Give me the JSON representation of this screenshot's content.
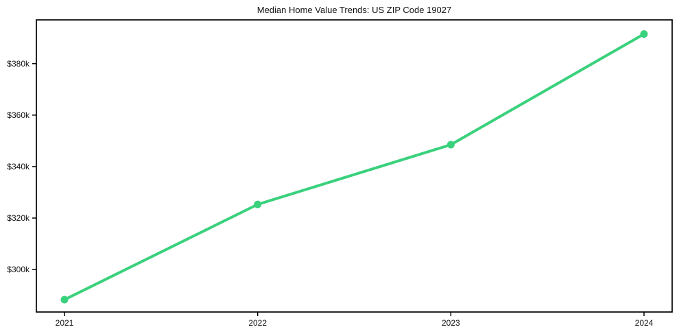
{
  "colors": {
    "line": "#3ad17d",
    "axis": "#000000",
    "text": "#111111",
    "background": "#ffffff"
  },
  "chart_data": {
    "type": "line",
    "title": "Median Home Value Trends: US ZIP Code 19027",
    "xlabel": "",
    "ylabel": "",
    "categories": [
      "2021",
      "2022",
      "2023",
      "2024"
    ],
    "values": [
      288300,
      325300,
      348500,
      391500
    ],
    "ytick_values": [
      300000,
      320000,
      340000,
      360000,
      380000
    ],
    "ytick_labels": [
      "$300k",
      "$320k",
      "$340k",
      "$360k",
      "$380k"
    ],
    "ylim": [
      283500,
      397000
    ],
    "grid": false,
    "legend": "none",
    "marker": "circle",
    "line_color": "#3ad17d",
    "line_width": 4,
    "marker_radius": 5.5
  }
}
